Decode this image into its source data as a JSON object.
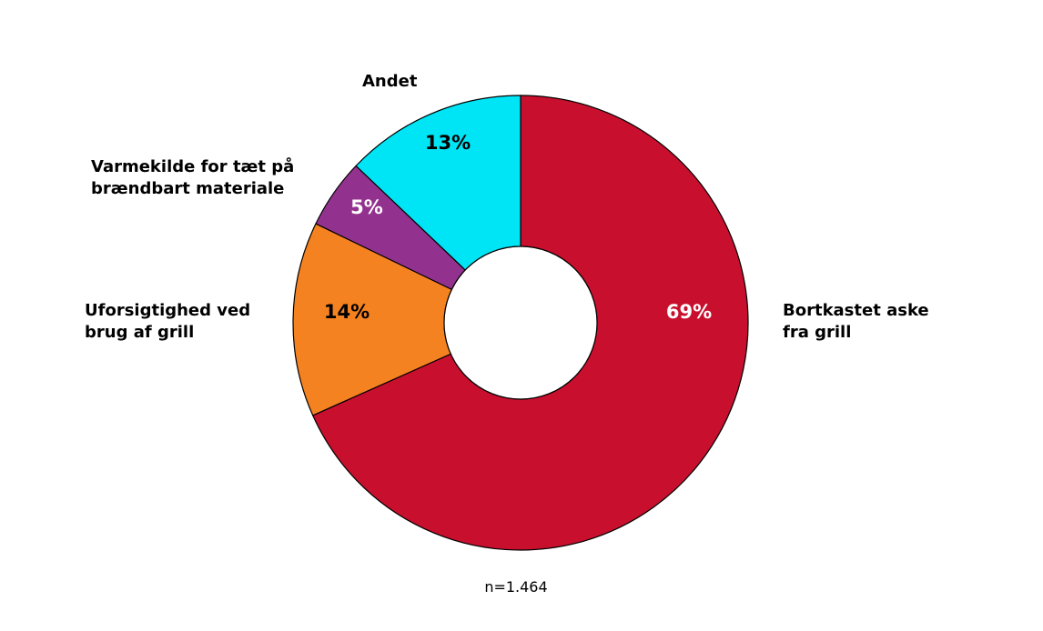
{
  "chart_data": {
    "type": "pie",
    "categories": [
      "Bortkastet aske\nfra grill",
      "Uforsigtighed ved\nbrug af grill",
      "Varmekilde for tæt på\nbrændbart materiale",
      "Andet"
    ],
    "values": [
      69,
      14,
      5,
      13
    ],
    "value_labels": [
      "69%",
      "14%",
      "5%",
      "13%"
    ],
    "colors": [
      "#c8102e",
      "#f58220",
      "#93328e",
      "#00e5f5"
    ],
    "value_label_colors": [
      "#ffffff",
      "#000000",
      "#ffffff",
      "#000000"
    ],
    "donut": true,
    "note": "n=1.464"
  }
}
